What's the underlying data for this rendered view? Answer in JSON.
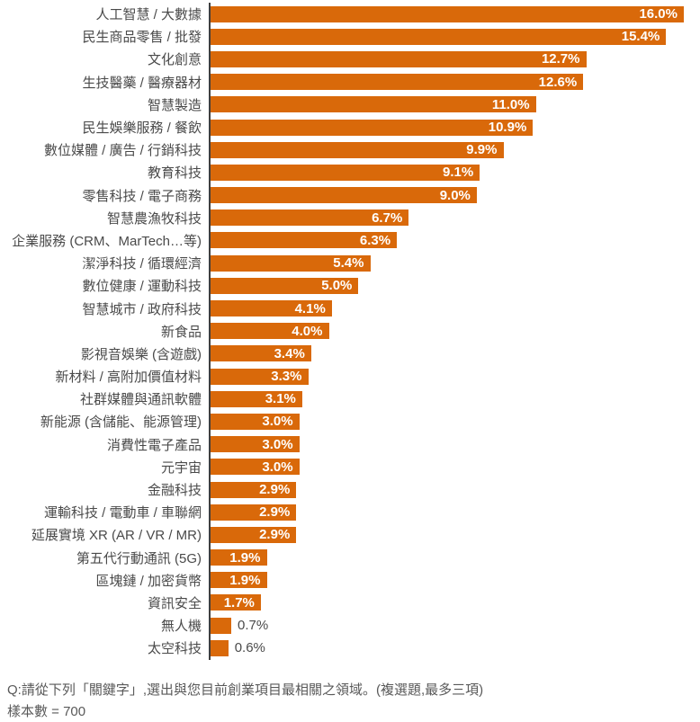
{
  "chart_data": {
    "type": "bar",
    "orientation": "horizontal",
    "title": "",
    "xlabel": "",
    "ylabel": "",
    "xlim": [
      0,
      16
    ],
    "grid": false,
    "legend": false,
    "bar_color": "#D9690A",
    "value_label_color_inside": "#FFFFFF",
    "value_label_color_outside": "#4A4A4A",
    "axis_line_color": "#3F3F3F",
    "categories": [
      "人工智慧 / 大數據",
      "民生商品零售 / 批發",
      "文化創意",
      "生技醫藥 / 醫療器材",
      "智慧製造",
      "民生娛樂服務 / 餐飲",
      "數位媒體 / 廣告 / 行銷科技",
      "教育科技",
      "零售科技 / 電子商務",
      "智慧農漁牧科技",
      "企業服務 (CRM、MarTech…等)",
      "潔淨科技 / 循環經濟",
      "數位健康 / 運動科技",
      "智慧城市 / 政府科技",
      "新食品",
      "影視音娛樂 (含遊戲)",
      "新材料 / 高附加價值材料",
      "社群媒體與通訊軟體",
      "新能源 (含儲能、能源管理)",
      "消費性電子產品",
      "元宇宙",
      "金融科技",
      "運輸科技 / 電動車 / 車聯網",
      "延展實境 XR (AR / VR / MR)",
      "第五代行動通訊 (5G)",
      "區塊鏈 / 加密貨幣",
      "資訊安全",
      "無人機",
      "太空科技"
    ],
    "values": [
      16.0,
      15.4,
      12.7,
      12.6,
      11.0,
      10.9,
      9.9,
      9.1,
      9.0,
      6.7,
      6.3,
      5.4,
      5.0,
      4.1,
      4.0,
      3.4,
      3.3,
      3.1,
      3.0,
      3.0,
      3.0,
      2.9,
      2.9,
      2.9,
      1.9,
      1.9,
      1.7,
      0.7,
      0.6
    ],
    "value_labels": [
      "16.0%",
      "15.4%",
      "12.7%",
      "12.6%",
      "11.0%",
      "10.9%",
      "9.9%",
      "9.1%",
      "9.0%",
      "6.7%",
      "6.3%",
      "5.4%",
      "5.0%",
      "4.1%",
      "4.0%",
      "3.4%",
      "3.3%",
      "3.1%",
      "3.0%",
      "3.0%",
      "3.0%",
      "2.9%",
      "2.9%",
      "2.9%",
      "1.9%",
      "1.9%",
      "1.7%",
      "0.7%",
      "0.6%"
    ]
  },
  "footer": {
    "question": "Q:請從下列「關鍵字」,選出與您目前創業項目最相關之領域。(複選題,最多三項)",
    "sample": "樣本數 = 700"
  }
}
